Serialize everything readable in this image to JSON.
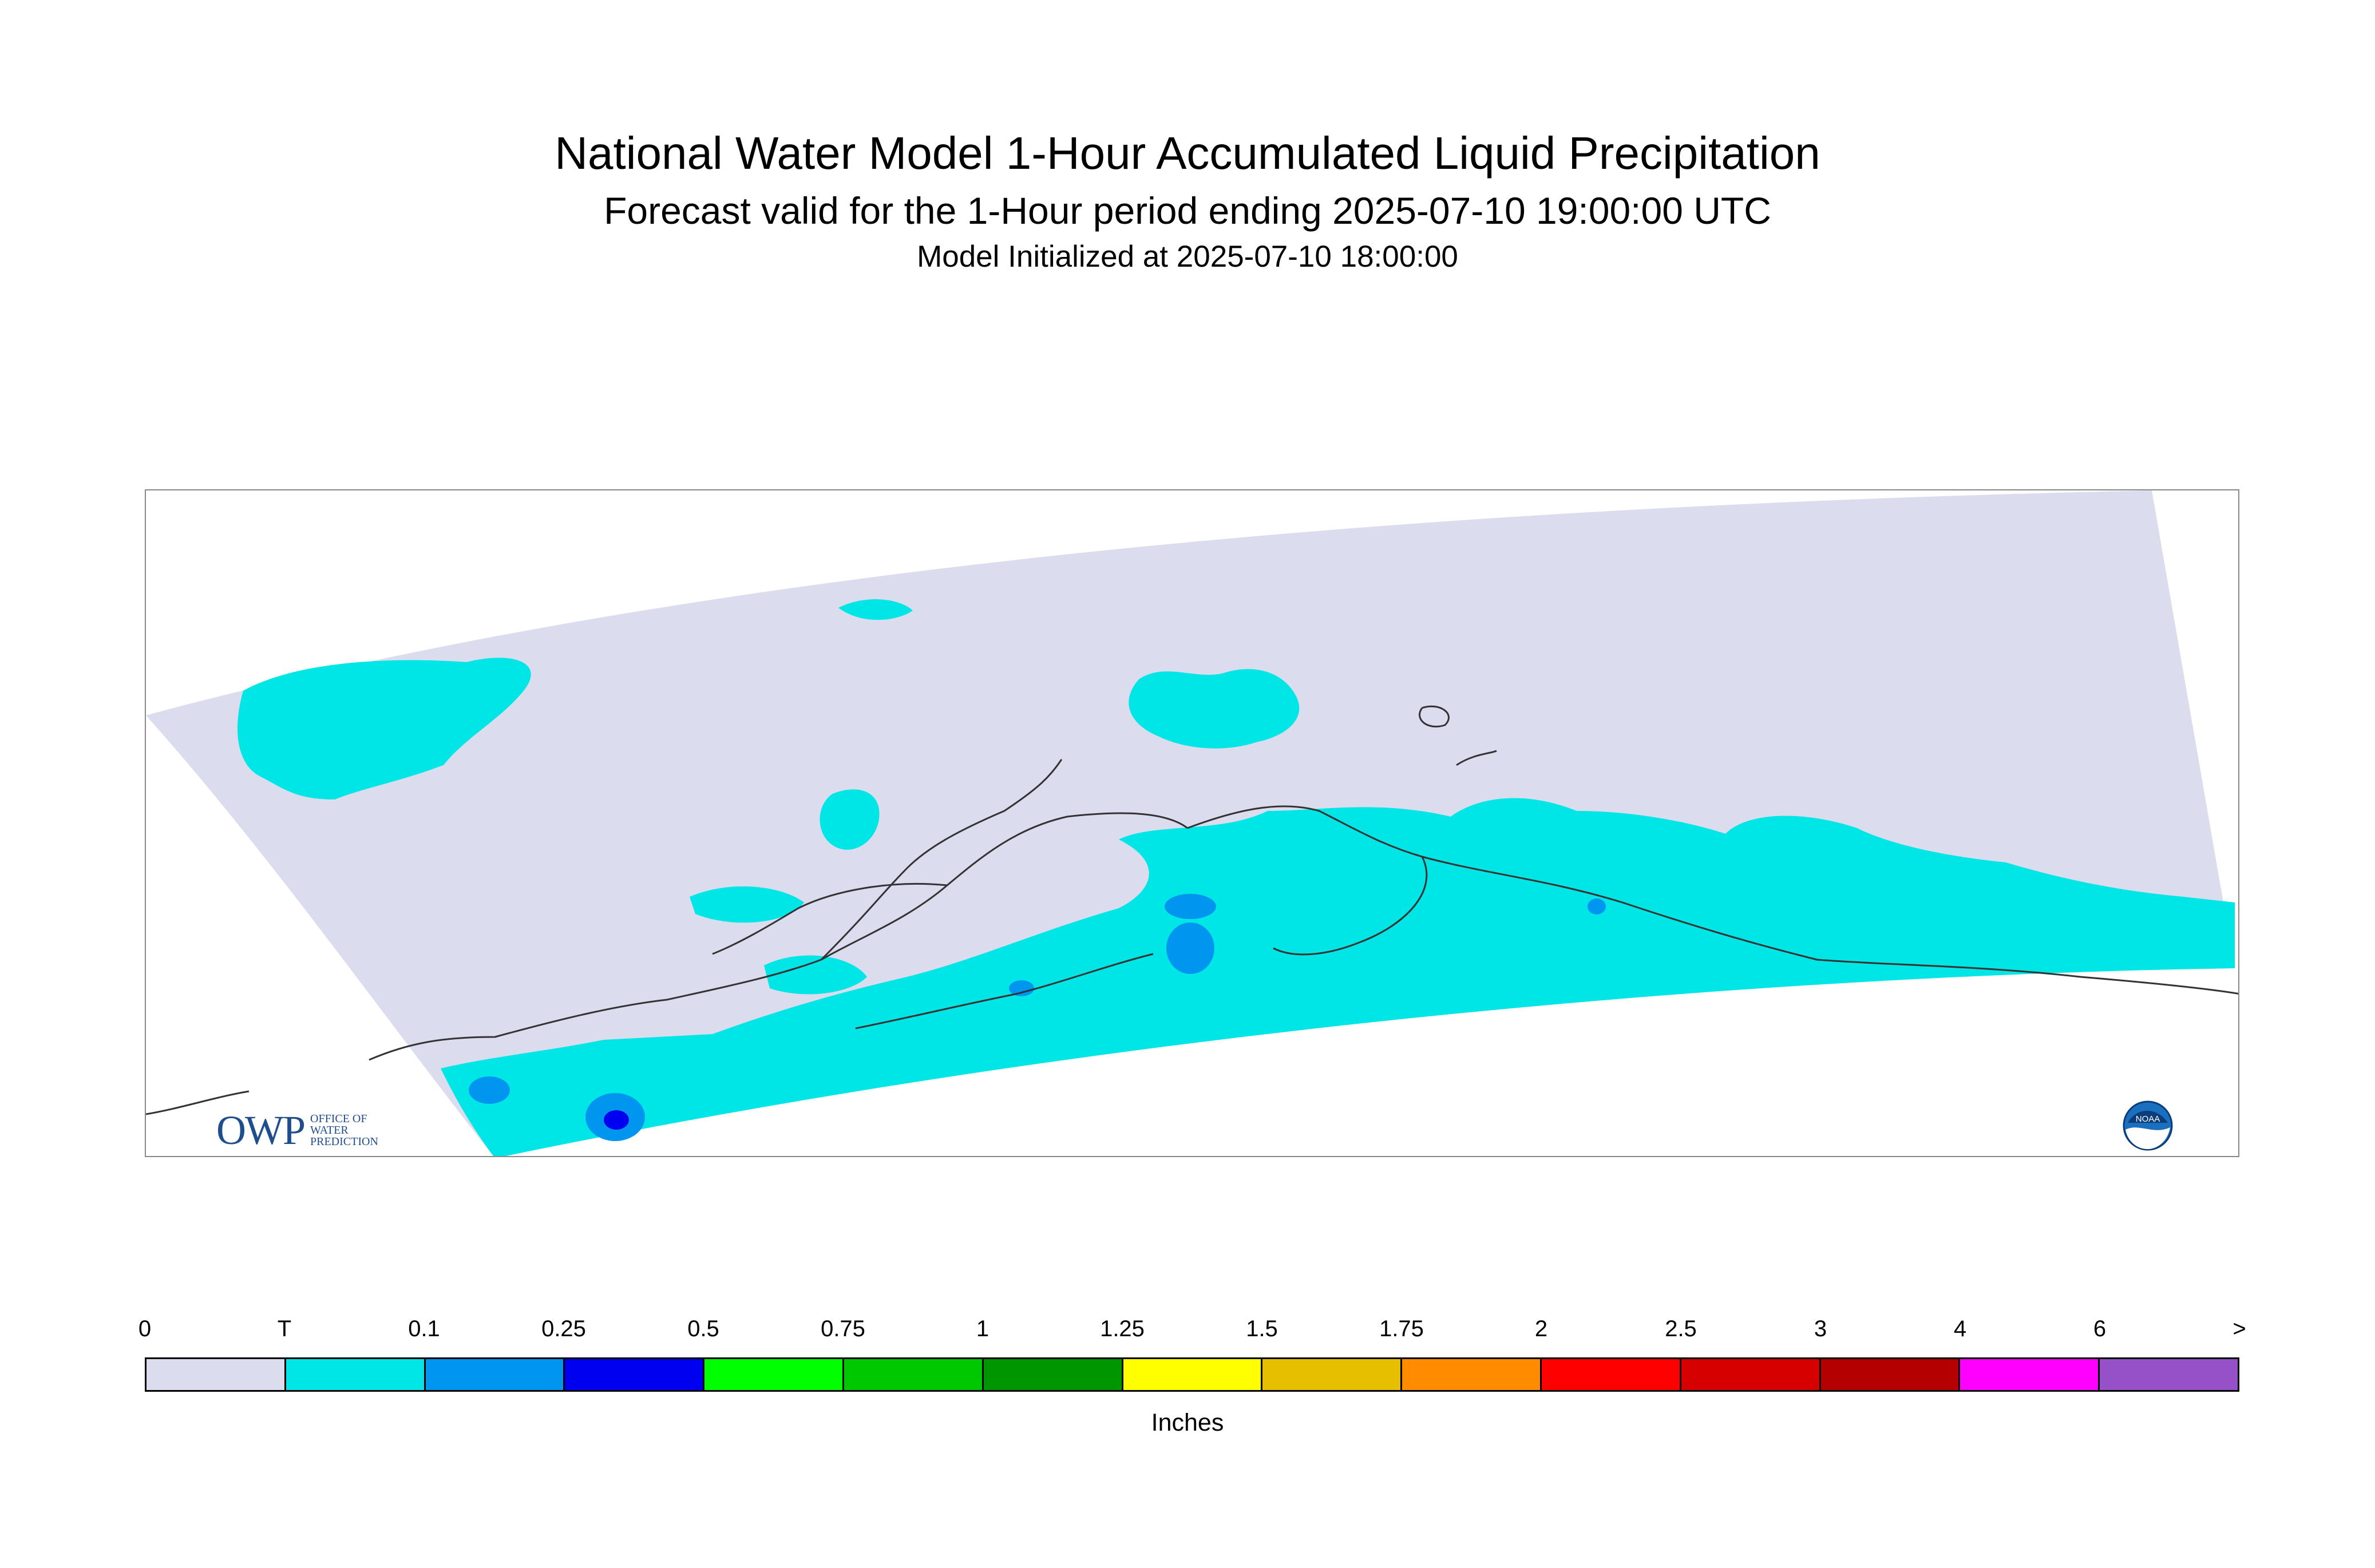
{
  "title": "National Water Model 1-Hour Accumulated Liquid Precipitation",
  "subtitle": "Forecast valid for the 1-Hour period ending 2025-07-10 19:00:00 UTC",
  "init_line": "Model Initialized at 2025-07-10 18:00:00",
  "legend": {
    "unit": "Inches",
    "tick_labels": [
      "0",
      "T",
      "0.1",
      "0.25",
      "0.5",
      "0.75",
      "1",
      "1.25",
      "1.5",
      "1.75",
      "2",
      "2.5",
      "3",
      "4",
      "6",
      ">"
    ],
    "colors": [
      "#dcdcef",
      "#00e5e5",
      "#0096f0",
      "#0000f0",
      "#00ff00",
      "#00c800",
      "#009600",
      "#ffff00",
      "#e6c000",
      "#ff8c00",
      "#ff0000",
      "#d70000",
      "#b40000",
      "#ff00ff",
      "#9650c8"
    ]
  },
  "logos": {
    "owp_letters": "OWP",
    "owp_lines": [
      "OFFICE OF",
      "WATER",
      "PREDICTION"
    ],
    "noaa_text": "NOAA"
  },
  "colors": {
    "domain_zero": "#dcdcef",
    "trace": "#00e5e5",
    "light_blue": "#0096f0",
    "blue": "#0000f0",
    "coastline": "#333333"
  }
}
